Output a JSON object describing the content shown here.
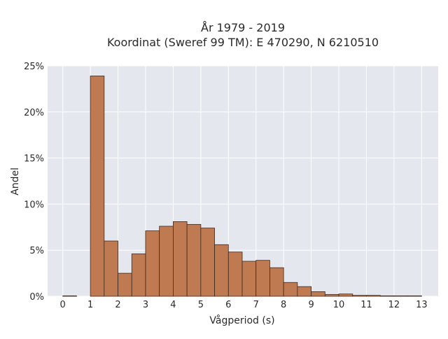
{
  "chart_data": {
    "type": "bar",
    "title_line1": "År 1979 - 2019",
    "title_line2": "Koordinat (Sweref 99 TM): E 470290, N 6210510",
    "xlabel": "Vågperiod (s)",
    "ylabel": "Andel",
    "xlim": [
      -0.55,
      13.6
    ],
    "ylim": [
      0,
      25
    ],
    "x_ticks": [
      0,
      1,
      2,
      3,
      4,
      5,
      6,
      7,
      8,
      9,
      10,
      11,
      12,
      13
    ],
    "y_ticks": [
      0,
      5,
      10,
      15,
      20,
      25
    ],
    "y_tick_labels": [
      "0%",
      "5%",
      "10%",
      "15%",
      "20%",
      "25%"
    ],
    "bin_width": 0.5,
    "bins": [
      {
        "start": 0.0,
        "value": 0.05
      },
      {
        "start": 0.5,
        "value": 0.0
      },
      {
        "start": 1.0,
        "value": 23.9
      },
      {
        "start": 1.5,
        "value": 6.0
      },
      {
        "start": 2.0,
        "value": 2.5
      },
      {
        "start": 2.5,
        "value": 4.6
      },
      {
        "start": 3.0,
        "value": 7.1
      },
      {
        "start": 3.5,
        "value": 7.6
      },
      {
        "start": 4.0,
        "value": 8.1
      },
      {
        "start": 4.5,
        "value": 7.8
      },
      {
        "start": 5.0,
        "value": 7.4
      },
      {
        "start": 5.5,
        "value": 5.6
      },
      {
        "start": 6.0,
        "value": 4.8
      },
      {
        "start": 6.5,
        "value": 3.8
      },
      {
        "start": 7.0,
        "value": 3.9
      },
      {
        "start": 7.5,
        "value": 3.1
      },
      {
        "start": 8.0,
        "value": 1.5
      },
      {
        "start": 8.5,
        "value": 1.05
      },
      {
        "start": 9.0,
        "value": 0.5
      },
      {
        "start": 9.5,
        "value": 0.2
      },
      {
        "start": 10.0,
        "value": 0.25
      },
      {
        "start": 10.5,
        "value": 0.1
      },
      {
        "start": 11.0,
        "value": 0.1
      },
      {
        "start": 11.5,
        "value": 0.05
      },
      {
        "start": 12.0,
        "value": 0.05
      },
      {
        "start": 12.5,
        "value": 0.05
      }
    ],
    "grid": true,
    "colors": {
      "bar_fill": "#c07a52",
      "bar_stroke": "#3a2a20",
      "plot_bg": "#e5e7ef",
      "grid": "#ffffff"
    }
  }
}
